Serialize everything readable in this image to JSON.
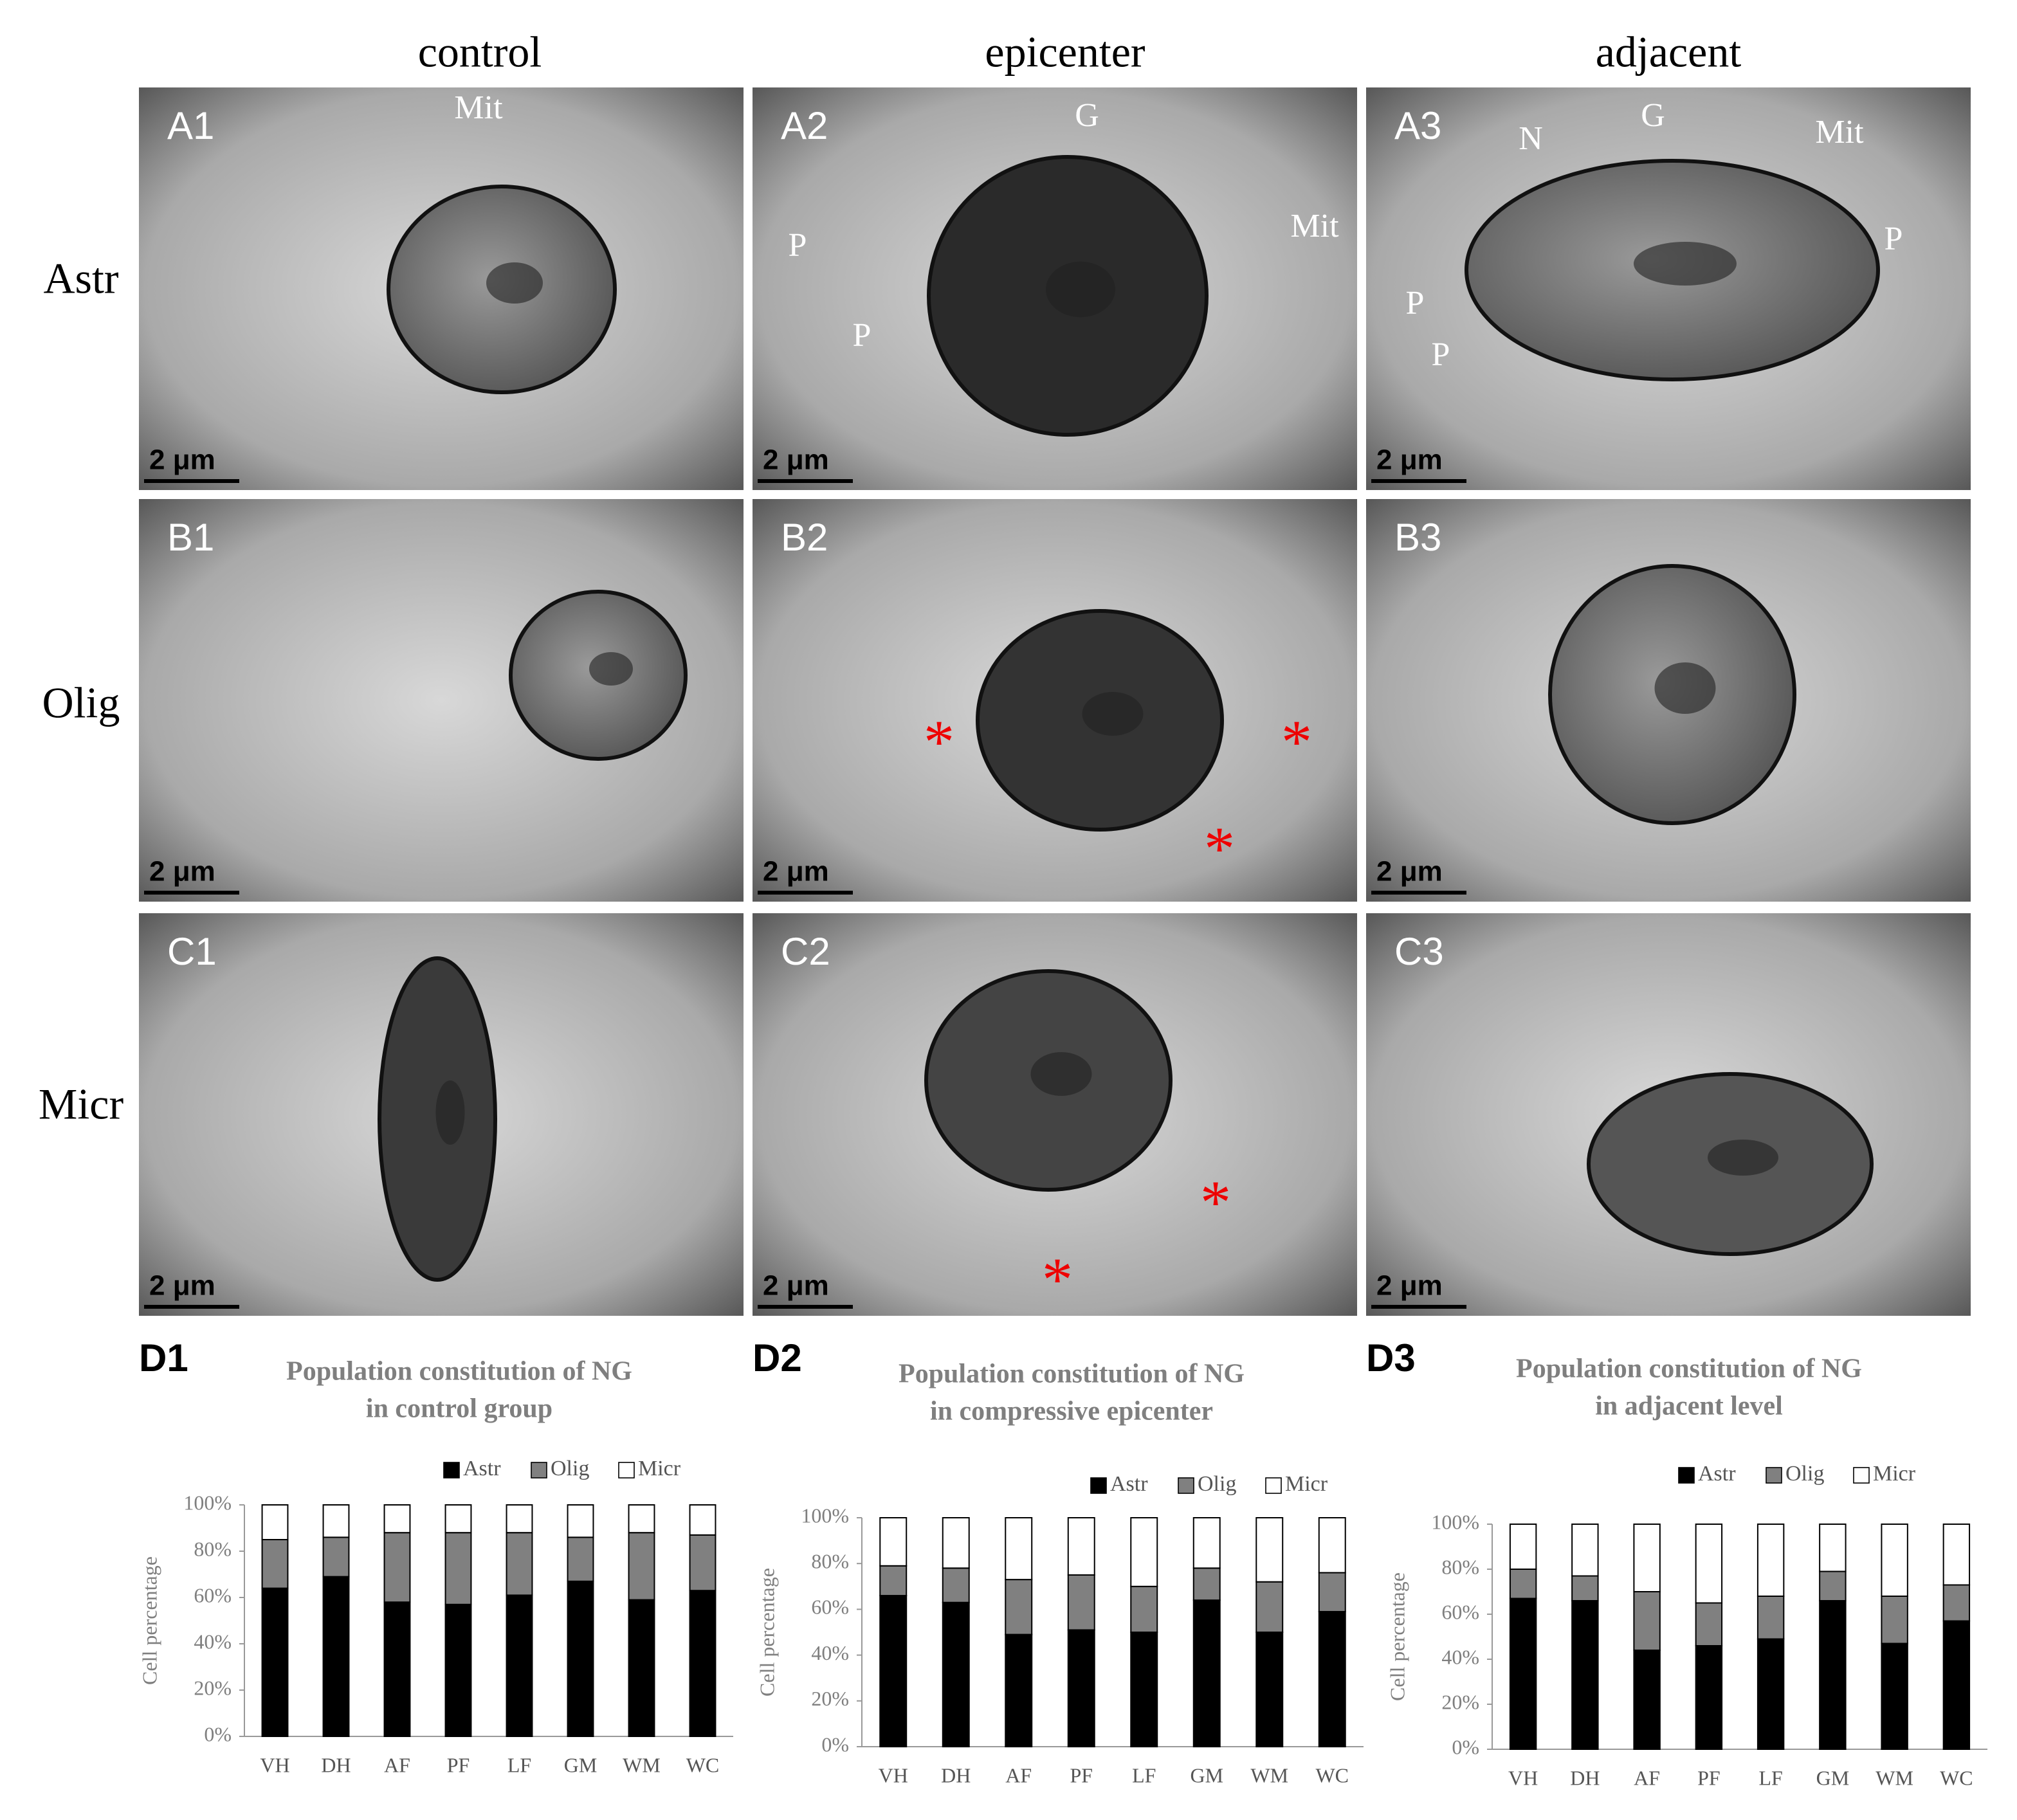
{
  "figure": {
    "columns": [
      "control",
      "epicenter",
      "adjacent"
    ],
    "rows": [
      "Astr",
      "Olig",
      "Micr"
    ],
    "panels": [
      {
        "label": "A1",
        "scale": "2 μm",
        "notes": [
          "Mit"
        ]
      },
      {
        "label": "A2",
        "scale": "2 μm",
        "notes": [
          "G",
          "Mit",
          "P",
          "P"
        ]
      },
      {
        "label": "A3",
        "scale": "2 μm",
        "notes": [
          "N",
          "G",
          "Mit",
          "P",
          "P",
          "P"
        ]
      },
      {
        "label": "B1",
        "scale": "2 μm"
      },
      {
        "label": "B2",
        "scale": "2 μm",
        "notes": [
          "*",
          "*",
          "*"
        ]
      },
      {
        "label": "B3",
        "scale": "2 μm"
      },
      {
        "label": "C1",
        "scale": "2 μm"
      },
      {
        "label": "C2",
        "scale": "2 μm",
        "notes": [
          "*",
          "*"
        ]
      },
      {
        "label": "C3",
        "scale": "2 μm"
      }
    ]
  },
  "chart_data": [
    {
      "type": "bar",
      "stacked": true,
      "panel_label": "D1",
      "title": [
        "Population constitution of NG",
        "in control group"
      ],
      "ylabel": "Cell percentage",
      "categories": [
        "VH",
        "DH",
        "AF",
        "PF",
        "LF",
        "GM",
        "WM",
        "WC"
      ],
      "series": [
        {
          "name": "Astr",
          "color": "#000000",
          "values": [
            64,
            69,
            58,
            57,
            61,
            67,
            59,
            63
          ]
        },
        {
          "name": "Olig",
          "color": "#808080",
          "values": [
            21,
            17,
            30,
            31,
            27,
            19,
            29,
            24
          ]
        },
        {
          "name": "Micr",
          "color": "#ffffff",
          "values": [
            15,
            14,
            12,
            12,
            12,
            14,
            12,
            13
          ]
        }
      ],
      "ylim": [
        0,
        100
      ],
      "yticks": [
        {
          "value": 0,
          "label": "0%"
        },
        {
          "value": 20,
          "label": "20%"
        },
        {
          "value": 40,
          "label": "40%"
        },
        {
          "value": 60,
          "label": "60%"
        },
        {
          "value": 80,
          "label": "80%"
        },
        {
          "value": 100,
          "label": "100%"
        }
      ]
    },
    {
      "type": "bar",
      "stacked": true,
      "panel_label": "D2",
      "title": [
        "Population constitution of NG",
        "in compressive epicenter"
      ],
      "ylabel": "Cell percentage",
      "categories": [
        "VH",
        "DH",
        "AF",
        "PF",
        "LF",
        "GM",
        "WM",
        "WC"
      ],
      "series": [
        {
          "name": "Astr",
          "color": "#000000",
          "values": [
            66,
            63,
            49,
            51,
            50,
            64,
            50,
            59
          ]
        },
        {
          "name": "Olig",
          "color": "#808080",
          "values": [
            13,
            15,
            24,
            24,
            20,
            14,
            22,
            17
          ]
        },
        {
          "name": "Micr",
          "color": "#ffffff",
          "values": [
            21,
            22,
            27,
            25,
            30,
            22,
            28,
            24
          ]
        }
      ],
      "ylim": [
        0,
        100
      ],
      "yticks": [
        {
          "value": 0,
          "label": "0%"
        },
        {
          "value": 20,
          "label": "20%"
        },
        {
          "value": 40,
          "label": "40%"
        },
        {
          "value": 60,
          "label": "60%"
        },
        {
          "value": 80,
          "label": "80%"
        },
        {
          "value": 100,
          "label": "100%"
        }
      ]
    },
    {
      "type": "bar",
      "stacked": true,
      "panel_label": "D3",
      "title": [
        "Population constitution of NG",
        "in adjacent level"
      ],
      "ylabel": "Cell percentage",
      "categories": [
        "VH",
        "DH",
        "AF",
        "PF",
        "LF",
        "GM",
        "WM",
        "WC"
      ],
      "series": [
        {
          "name": "Astr",
          "color": "#000000",
          "values": [
            67,
            66,
            44,
            46,
            49,
            66,
            47,
            57
          ]
        },
        {
          "name": "Olig",
          "color": "#808080",
          "values": [
            13,
            11,
            26,
            19,
            19,
            13,
            21,
            16
          ]
        },
        {
          "name": "Micr",
          "color": "#ffffff",
          "values": [
            20,
            23,
            30,
            35,
            32,
            21,
            32,
            27
          ]
        }
      ],
      "ylim": [
        0,
        100
      ],
      "yticks": [
        {
          "value": 0,
          "label": "0%"
        },
        {
          "value": 20,
          "label": "20%"
        },
        {
          "value": 40,
          "label": "40%"
        },
        {
          "value": 60,
          "label": "60%"
        },
        {
          "value": 80,
          "label": "80%"
        },
        {
          "value": 100,
          "label": "100%"
        }
      ]
    }
  ]
}
